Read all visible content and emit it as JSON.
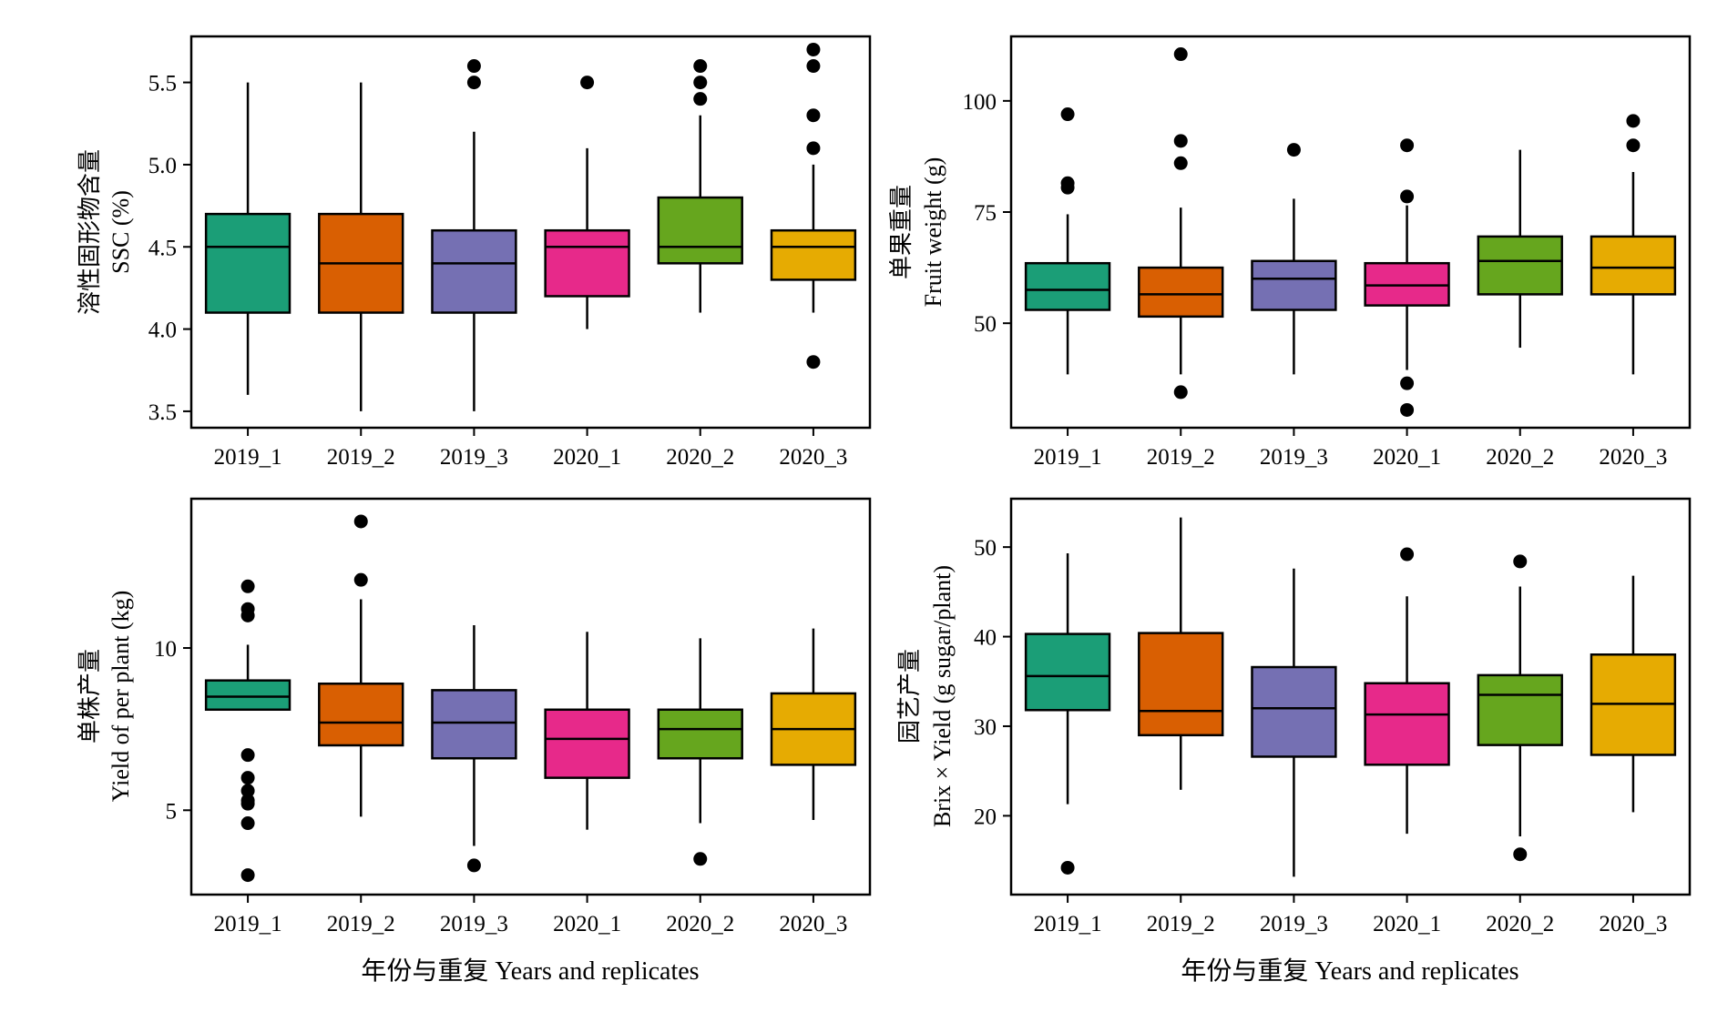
{
  "chart_data": [
    {
      "type": "box",
      "ylabel_cn": "溶性固形物含量",
      "ylabel_en": "SSC (%)",
      "xlabel": "",
      "categories": [
        "2019_1",
        "2019_2",
        "2019_3",
        "2020_1",
        "2020_2",
        "2020_3"
      ],
      "yticks": [
        "3.5",
        "4.0",
        "4.5",
        "5.0",
        "5.5"
      ],
      "ylim": [
        3.4,
        5.78
      ],
      "boxes": [
        {
          "name": "2019_1",
          "color": "#1b9e77",
          "q1": 4.1,
          "median": 4.5,
          "q3": 4.7,
          "whisker_low": 3.6,
          "whisker_high": 5.5,
          "outliers": []
        },
        {
          "name": "2019_2",
          "color": "#d95f02",
          "q1": 4.1,
          "median": 4.4,
          "q3": 4.7,
          "whisker_low": 3.5,
          "whisker_high": 5.5,
          "outliers": []
        },
        {
          "name": "2019_3",
          "color": "#7570b3",
          "q1": 4.1,
          "median": 4.4,
          "q3": 4.6,
          "whisker_low": 3.5,
          "whisker_high": 5.2,
          "outliers": [
            5.5,
            5.6
          ]
        },
        {
          "name": "2020_1",
          "color": "#e7298a",
          "q1": 4.2,
          "median": 4.5,
          "q3": 4.6,
          "whisker_low": 4.0,
          "whisker_high": 5.1,
          "outliers": [
            5.5
          ]
        },
        {
          "name": "2020_2",
          "color": "#66a61e",
          "q1": 4.4,
          "median": 4.5,
          "q3": 4.8,
          "whisker_low": 4.1,
          "whisker_high": 5.3,
          "outliers": [
            5.4,
            5.5,
            5.6
          ]
        },
        {
          "name": "2020_3",
          "color": "#e6ab02",
          "q1": 4.3,
          "median": 4.5,
          "q3": 4.6,
          "whisker_low": 4.1,
          "whisker_high": 5.0,
          "outliers": [
            3.8,
            5.1,
            5.3,
            5.6,
            5.7
          ]
        }
      ]
    },
    {
      "type": "box",
      "ylabel_cn": "单果重量",
      "ylabel_en": "Fruit weight (g)",
      "xlabel": "",
      "categories": [
        "2019_1",
        "2019_2",
        "2019_3",
        "2020_1",
        "2020_2",
        "2020_3"
      ],
      "yticks": [
        "50",
        "75",
        "100"
      ],
      "ylim": [
        26.5,
        114.5
      ],
      "boxes": [
        {
          "name": "2019_1",
          "color": "#1b9e77",
          "q1": 53,
          "median": 57.5,
          "q3": 63.5,
          "whisker_low": 38.5,
          "whisker_high": 74.5,
          "outliers": [
            80.5,
            81.5,
            97
          ]
        },
        {
          "name": "2019_2",
          "color": "#d95f02",
          "q1": 51.5,
          "median": 56.5,
          "q3": 62.5,
          "whisker_low": 38.5,
          "whisker_high": 76,
          "outliers": [
            34.5,
            86,
            91,
            110.5
          ]
        },
        {
          "name": "2019_3",
          "color": "#7570b3",
          "q1": 53,
          "median": 60,
          "q3": 64,
          "whisker_low": 38.5,
          "whisker_high": 78,
          "outliers": [
            89
          ]
        },
        {
          "name": "2020_1",
          "color": "#e7298a",
          "q1": 54,
          "median": 58.5,
          "q3": 63.5,
          "whisker_low": 39.5,
          "whisker_high": 76.5,
          "outliers": [
            30.5,
            36.5,
            78.5,
            90
          ]
        },
        {
          "name": "2020_2",
          "color": "#66a61e",
          "q1": 56.5,
          "median": 64,
          "q3": 69.5,
          "whisker_low": 44.5,
          "whisker_high": 89,
          "outliers": []
        },
        {
          "name": "2020_3",
          "color": "#e6ab02",
          "q1": 56.5,
          "median": 62.5,
          "q3": 69.5,
          "whisker_low": 38.5,
          "whisker_high": 84,
          "outliers": [
            90,
            95.5
          ]
        }
      ]
    },
    {
      "type": "box",
      "ylabel_cn": "单株产量",
      "ylabel_en": "Yield of per plant (kg)",
      "xlabel": "年份与重复 Years and replicates",
      "categories": [
        "2019_1",
        "2019_2",
        "2019_3",
        "2020_1",
        "2020_2",
        "2020_3"
      ],
      "yticks": [
        "5",
        "10"
      ],
      "ylim": [
        2.4,
        14.6
      ],
      "boxes": [
        {
          "name": "2019_1",
          "color": "#1b9e77",
          "q1": 8.1,
          "median": 8.5,
          "q3": 9.0,
          "whisker_low": 8.1,
          "whisker_high": 10.1,
          "outliers": [
            3.0,
            4.6,
            5.2,
            5.3,
            5.6,
            6.0,
            6.7,
            11.0,
            11.2,
            11.9
          ]
        },
        {
          "name": "2019_2",
          "color": "#d95f02",
          "q1": 7.0,
          "median": 7.7,
          "q3": 8.9,
          "whisker_low": 4.8,
          "whisker_high": 11.5,
          "outliers": [
            12.1,
            13.9
          ]
        },
        {
          "name": "2019_3",
          "color": "#7570b3",
          "q1": 6.6,
          "median": 7.7,
          "q3": 8.7,
          "whisker_low": 3.9,
          "whisker_high": 10.7,
          "outliers": [
            3.3
          ]
        },
        {
          "name": "2020_1",
          "color": "#e7298a",
          "q1": 6.0,
          "median": 7.2,
          "q3": 8.1,
          "whisker_low": 4.4,
          "whisker_high": 10.5,
          "outliers": []
        },
        {
          "name": "2020_2",
          "color": "#66a61e",
          "q1": 6.6,
          "median": 7.5,
          "q3": 8.1,
          "whisker_low": 4.6,
          "whisker_high": 10.3,
          "outliers": [
            3.5
          ]
        },
        {
          "name": "2020_3",
          "color": "#e6ab02",
          "q1": 6.4,
          "median": 7.5,
          "q3": 8.6,
          "whisker_low": 4.7,
          "whisker_high": 10.6,
          "outliers": []
        }
      ]
    },
    {
      "type": "box",
      "ylabel_cn": "园艺产量",
      "ylabel_en": "Brix × Yield (g sugar/plant)",
      "xlabel": "年份与重复 Years and replicates",
      "categories": [
        "2019_1",
        "2019_2",
        "2019_3",
        "2020_1",
        "2020_2",
        "2020_3"
      ],
      "yticks": [
        "20",
        "30",
        "40",
        "50"
      ],
      "ylim": [
        11.2,
        55.4
      ],
      "boxes": [
        {
          "name": "2019_1",
          "color": "#1b9e77",
          "q1": 31.8,
          "median": 35.6,
          "q3": 40.3,
          "whisker_low": 21.3,
          "whisker_high": 49.3,
          "outliers": [
            14.2
          ]
        },
        {
          "name": "2019_2",
          "color": "#d95f02",
          "q1": 29.0,
          "median": 31.7,
          "q3": 40.4,
          "whisker_low": 22.9,
          "whisker_high": 53.3,
          "outliers": []
        },
        {
          "name": "2019_3",
          "color": "#7570b3",
          "q1": 26.6,
          "median": 32.0,
          "q3": 36.6,
          "whisker_low": 13.2,
          "whisker_high": 47.6,
          "outliers": []
        },
        {
          "name": "2020_1",
          "color": "#e7298a",
          "q1": 25.7,
          "median": 31.3,
          "q3": 34.8,
          "whisker_low": 18.0,
          "whisker_high": 44.5,
          "outliers": [
            49.2
          ]
        },
        {
          "name": "2020_2",
          "color": "#66a61e",
          "q1": 27.9,
          "median": 33.5,
          "q3": 35.7,
          "whisker_low": 17.7,
          "whisker_high": 45.6,
          "outliers": [
            15.7,
            48.4
          ]
        },
        {
          "name": "2020_3",
          "color": "#e6ab02",
          "q1": 26.8,
          "median": 32.5,
          "q3": 38.0,
          "whisker_low": 20.4,
          "whisker_high": 46.8,
          "outliers": []
        }
      ]
    }
  ]
}
